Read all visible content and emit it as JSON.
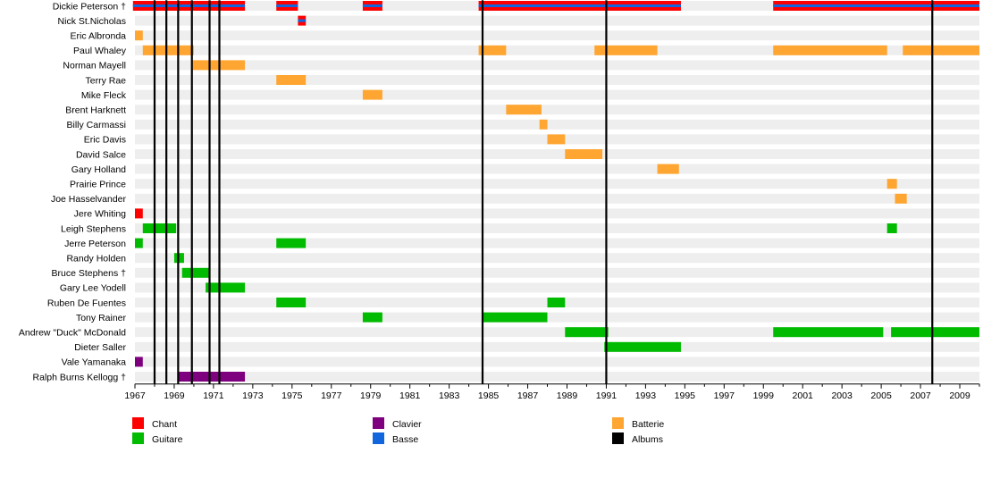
{
  "chart_data": {
    "type": "timeline",
    "x_range": [
      1967,
      2010
    ],
    "x_ticks": [
      "1967",
      "1969",
      "1971",
      "1973",
      "1975",
      "1977",
      "1979",
      "1981",
      "1983",
      "1985",
      "1987",
      "1989",
      "1991",
      "1993",
      "1995",
      "1997",
      "1999",
      "2001",
      "2003",
      "2005",
      "2007",
      "2009"
    ],
    "role_colors": {
      "chant": "#ff0000",
      "guitare": "#00bb00",
      "clavier": "#7f007f",
      "batterie": "#ffa531",
      "basse": "#1166dd",
      "albums": "#000000"
    },
    "legend": [
      {
        "role": "chant",
        "label": "Chant"
      },
      {
        "role": "guitare",
        "label": "Guitare"
      },
      {
        "role": "clavier",
        "label": "Clavier"
      },
      {
        "role": "basse",
        "label": "Basse"
      },
      {
        "role": "batterie",
        "label": "Batterie"
      },
      {
        "role": "albums",
        "label": "Albums"
      }
    ],
    "albums": [
      1968.0,
      1968.6,
      1969.2,
      1969.9,
      1970.8,
      1971.3,
      1984.7,
      1991.0,
      2007.6
    ],
    "members": [
      {
        "name": "Dickie Peterson †",
        "bars": [
          {
            "start": 1966.9,
            "end": 1972.6,
            "role": "chant",
            "role2": "basse"
          },
          {
            "start": 1974.2,
            "end": 1975.3,
            "role": "chant",
            "role2": "basse"
          },
          {
            "start": 1978.6,
            "end": 1979.6,
            "role": "chant",
            "role2": "basse"
          },
          {
            "start": 1984.5,
            "end": 1994.8,
            "role": "chant",
            "role2": "basse"
          },
          {
            "start": 1999.5,
            "end": 2010.0,
            "role": "chant",
            "role2": "basse"
          }
        ]
      },
      {
        "name": "Nick St.Nicholas",
        "bars": [
          {
            "start": 1975.3,
            "end": 1975.7,
            "role": "chant",
            "role2": "basse"
          }
        ]
      },
      {
        "name": "Eric Albronda",
        "bars": [
          {
            "start": 1967.0,
            "end": 1967.4,
            "role": "batterie"
          }
        ]
      },
      {
        "name": "Paul Whaley",
        "bars": [
          {
            "start": 1967.4,
            "end": 1970.0,
            "role": "batterie"
          },
          {
            "start": 1984.5,
            "end": 1985.9,
            "role": "batterie"
          },
          {
            "start": 1990.4,
            "end": 1993.6,
            "role": "batterie"
          },
          {
            "start": 1999.5,
            "end": 2005.3,
            "role": "batterie"
          },
          {
            "start": 2006.1,
            "end": 2010.0,
            "role": "batterie"
          }
        ]
      },
      {
        "name": "Norman Mayell",
        "bars": [
          {
            "start": 1969.9,
            "end": 1972.6,
            "role": "batterie"
          }
        ]
      },
      {
        "name": "Terry Rae",
        "bars": [
          {
            "start": 1974.2,
            "end": 1975.7,
            "role": "batterie"
          }
        ]
      },
      {
        "name": "Mike Fleck",
        "bars": [
          {
            "start": 1978.6,
            "end": 1979.6,
            "role": "batterie"
          }
        ]
      },
      {
        "name": "Brent Harknett",
        "bars": [
          {
            "start": 1985.9,
            "end": 1987.7,
            "role": "batterie"
          }
        ]
      },
      {
        "name": "Billy Carmassi",
        "bars": [
          {
            "start": 1987.6,
            "end": 1988.0,
            "role": "batterie"
          }
        ]
      },
      {
        "name": "Eric Davis",
        "bars": [
          {
            "start": 1988.0,
            "end": 1988.9,
            "role": "batterie"
          }
        ]
      },
      {
        "name": "David Salce",
        "bars": [
          {
            "start": 1988.9,
            "end": 1990.8,
            "role": "batterie"
          }
        ]
      },
      {
        "name": "Gary Holland",
        "bars": [
          {
            "start": 1993.6,
            "end": 1994.7,
            "role": "batterie"
          }
        ]
      },
      {
        "name": "Prairie Prince",
        "bars": [
          {
            "start": 2005.3,
            "end": 2005.8,
            "role": "batterie"
          }
        ]
      },
      {
        "name": "Joe Hasselvander",
        "bars": [
          {
            "start": 2005.7,
            "end": 2006.3,
            "role": "batterie"
          }
        ]
      },
      {
        "name": "Jere Whiting",
        "bars": [
          {
            "start": 1967.0,
            "end": 1967.4,
            "role": "chant"
          }
        ]
      },
      {
        "name": "Leigh Stephens",
        "bars": [
          {
            "start": 1967.4,
            "end": 1969.1,
            "role": "guitare"
          },
          {
            "start": 2005.3,
            "end": 2005.8,
            "role": "guitare"
          }
        ]
      },
      {
        "name": "Jerre Peterson",
        "bars": [
          {
            "start": 1967.0,
            "end": 1967.4,
            "role": "guitare"
          },
          {
            "start": 1974.2,
            "end": 1975.7,
            "role": "guitare"
          }
        ]
      },
      {
        "name": "Randy Holden",
        "bars": [
          {
            "start": 1969.0,
            "end": 1969.5,
            "role": "guitare"
          }
        ]
      },
      {
        "name": "Bruce Stephens †",
        "bars": [
          {
            "start": 1969.4,
            "end": 1970.8,
            "role": "guitare"
          }
        ]
      },
      {
        "name": "Gary Lee Yodell",
        "bars": [
          {
            "start": 1970.6,
            "end": 1972.6,
            "role": "guitare"
          }
        ]
      },
      {
        "name": "Ruben De Fuentes",
        "bars": [
          {
            "start": 1974.2,
            "end": 1975.7,
            "role": "guitare"
          },
          {
            "start": 1988.0,
            "end": 1988.9,
            "role": "guitare"
          }
        ]
      },
      {
        "name": "Tony Rainer",
        "bars": [
          {
            "start": 1978.6,
            "end": 1979.6,
            "role": "guitare"
          },
          {
            "start": 1984.7,
            "end": 1988.0,
            "role": "guitare"
          }
        ]
      },
      {
        "name": "Andrew \"Duck\" McDonald",
        "bars": [
          {
            "start": 1988.9,
            "end": 1991.1,
            "role": "guitare"
          },
          {
            "start": 1999.5,
            "end": 2005.1,
            "role": "guitare"
          },
          {
            "start": 2005.5,
            "end": 2010.0,
            "role": "guitare"
          }
        ]
      },
      {
        "name": "Dieter Saller",
        "bars": [
          {
            "start": 1990.9,
            "end": 1994.8,
            "role": "guitare"
          }
        ]
      },
      {
        "name": "Vale Yamanaka",
        "bars": [
          {
            "start": 1967.0,
            "end": 1967.4,
            "role": "clavier"
          }
        ]
      },
      {
        "name": "Ralph Burns Kellogg †",
        "bars": [
          {
            "start": 1969.2,
            "end": 1972.6,
            "role": "clavier"
          }
        ]
      }
    ]
  }
}
